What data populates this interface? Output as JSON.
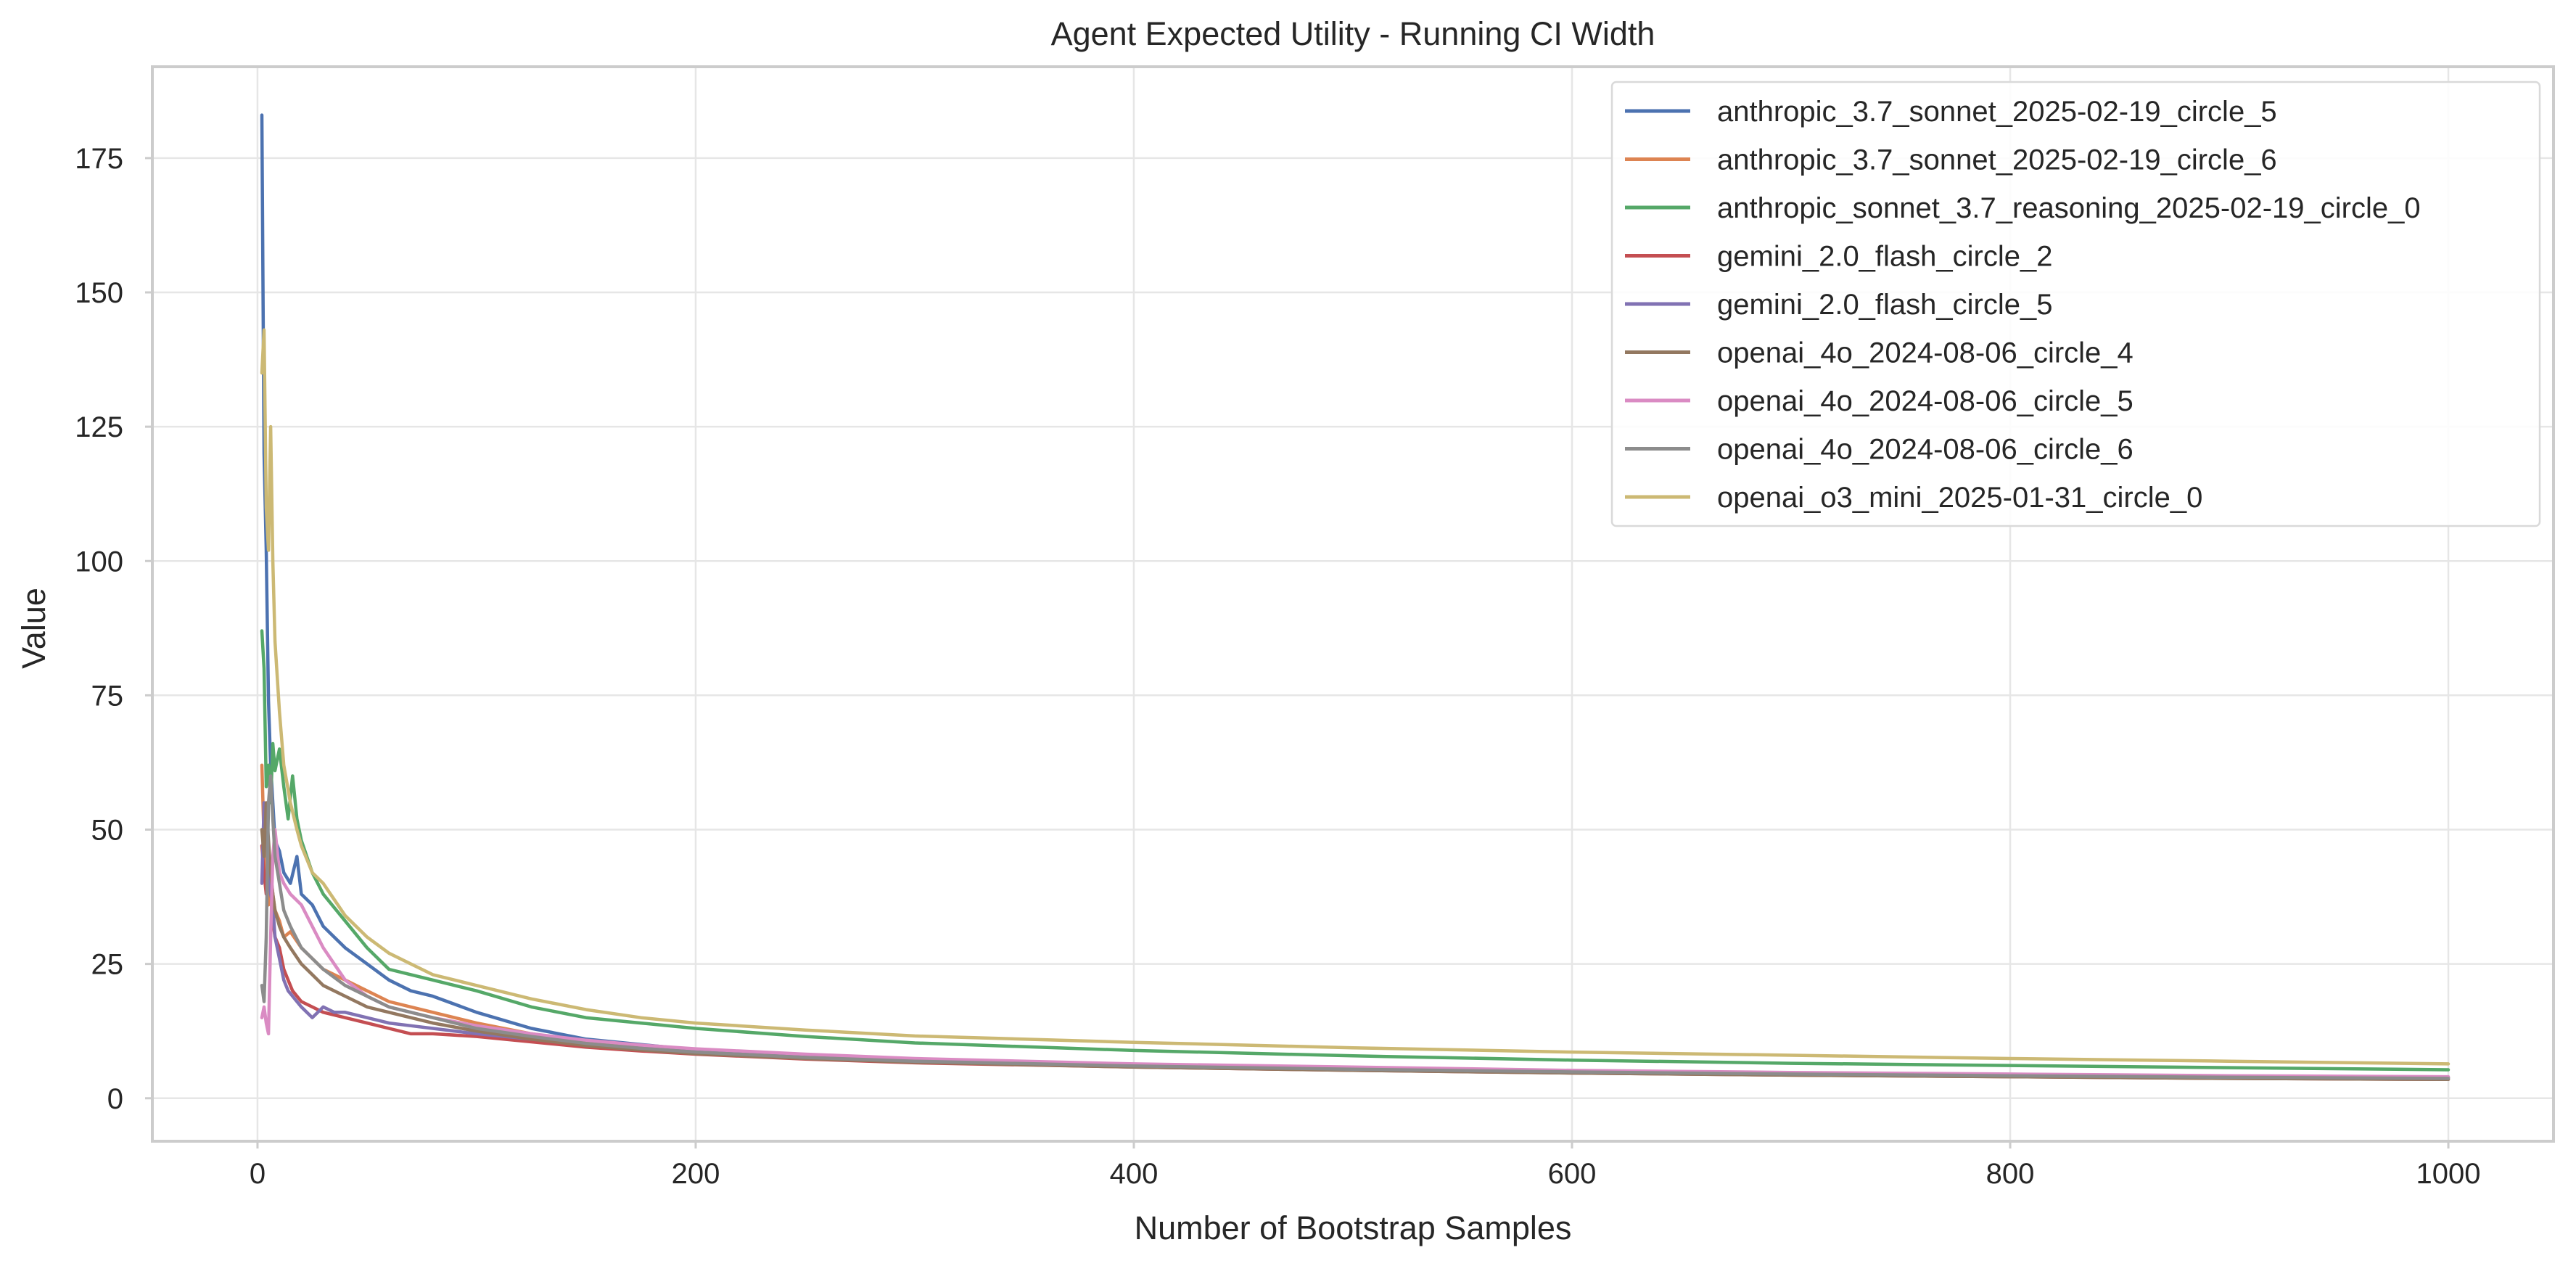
{
  "chart_data": {
    "type": "line",
    "title": "Agent Expected Utility - Running CI Width",
    "xlabel": "Number of Bootstrap Samples",
    "ylabel": "Value",
    "xlim": [
      -48,
      1048
    ],
    "ylim": [
      -8,
      192
    ],
    "xticks": [
      0,
      200,
      400,
      600,
      800,
      1000
    ],
    "yticks": [
      0,
      25,
      50,
      75,
      100,
      125,
      150,
      175
    ],
    "grid": true,
    "legend_position": "top-right",
    "series": [
      {
        "name": "anthropic_3.7_sonnet_2025-02-19_circle_5",
        "color": "#4c72b0",
        "points": [
          [
            2,
            183
          ],
          [
            3,
            120
          ],
          [
            4,
            102
          ],
          [
            5,
            74
          ],
          [
            6,
            62
          ],
          [
            7,
            55
          ],
          [
            8,
            48
          ],
          [
            10,
            46
          ],
          [
            12,
            42
          ],
          [
            15,
            40
          ],
          [
            18,
            45
          ],
          [
            20,
            38
          ],
          [
            25,
            36
          ],
          [
            30,
            32
          ],
          [
            35,
            30
          ],
          [
            40,
            28
          ],
          [
            50,
            25
          ],
          [
            60,
            22
          ],
          [
            70,
            20
          ],
          [
            80,
            19
          ],
          [
            100,
            16
          ],
          [
            125,
            13
          ],
          [
            150,
            11
          ],
          [
            175,
            10
          ],
          [
            200,
            9
          ],
          [
            250,
            8
          ],
          [
            300,
            7.2
          ],
          [
            400,
            6.2
          ],
          [
            500,
            5.6
          ],
          [
            600,
            5.0
          ],
          [
            700,
            4.6
          ],
          [
            800,
            4.3
          ],
          [
            900,
            4.0
          ],
          [
            1000,
            3.8
          ]
        ]
      },
      {
        "name": "anthropic_3.7_sonnet_2025-02-19_circle_6",
        "color": "#dd8452",
        "points": [
          [
            2,
            62
          ],
          [
            3,
            48
          ],
          [
            4,
            40
          ],
          [
            5,
            36
          ],
          [
            6,
            42
          ],
          [
            7,
            38
          ],
          [
            8,
            35
          ],
          [
            10,
            33
          ],
          [
            12,
            30
          ],
          [
            15,
            31
          ],
          [
            20,
            28
          ],
          [
            25,
            26
          ],
          [
            30,
            24
          ],
          [
            40,
            22
          ],
          [
            50,
            20
          ],
          [
            60,
            18
          ],
          [
            70,
            17
          ],
          [
            80,
            16
          ],
          [
            100,
            14
          ],
          [
            125,
            12
          ],
          [
            150,
            10.5
          ],
          [
            175,
            9.5
          ],
          [
            200,
            8.8
          ],
          [
            250,
            7.8
          ],
          [
            300,
            7.0
          ],
          [
            400,
            6.1
          ],
          [
            500,
            5.5
          ],
          [
            600,
            5.0
          ],
          [
            700,
            4.6
          ],
          [
            800,
            4.3
          ],
          [
            900,
            4.0
          ],
          [
            1000,
            3.8
          ]
        ]
      },
      {
        "name": "anthropic_sonnet_3.7_reasoning_2025-02-19_circle_0",
        "color": "#55a868",
        "points": [
          [
            2,
            87
          ],
          [
            3,
            80
          ],
          [
            4,
            58
          ],
          [
            5,
            62
          ],
          [
            6,
            55
          ],
          [
            7,
            66
          ],
          [
            8,
            61
          ],
          [
            10,
            65
          ],
          [
            12,
            58
          ],
          [
            14,
            52
          ],
          [
            16,
            60
          ],
          [
            18,
            52
          ],
          [
            20,
            48
          ],
          [
            25,
            42
          ],
          [
            30,
            38
          ],
          [
            40,
            33
          ],
          [
            50,
            28
          ],
          [
            60,
            24
          ],
          [
            70,
            23
          ],
          [
            80,
            22
          ],
          [
            100,
            20
          ],
          [
            125,
            17
          ],
          [
            150,
            15
          ],
          [
            175,
            14
          ],
          [
            200,
            13
          ],
          [
            250,
            11.5
          ],
          [
            300,
            10.3
          ],
          [
            400,
            8.9
          ],
          [
            500,
            7.9
          ],
          [
            600,
            7.1
          ],
          [
            700,
            6.5
          ],
          [
            800,
            6.1
          ],
          [
            900,
            5.7
          ],
          [
            1000,
            5.3
          ]
        ]
      },
      {
        "name": "gemini_2.0_flash_circle_2",
        "color": "#c44e52",
        "points": [
          [
            2,
            47
          ],
          [
            3,
            42
          ],
          [
            4,
            38
          ],
          [
            5,
            44
          ],
          [
            6,
            40
          ],
          [
            7,
            33
          ],
          [
            8,
            30
          ],
          [
            10,
            28
          ],
          [
            12,
            24
          ],
          [
            14,
            22
          ],
          [
            16,
            20
          ],
          [
            18,
            19
          ],
          [
            20,
            18
          ],
          [
            25,
            17
          ],
          [
            30,
            16
          ],
          [
            40,
            15
          ],
          [
            50,
            14
          ],
          [
            60,
            13
          ],
          [
            70,
            12
          ],
          [
            80,
            12
          ],
          [
            100,
            11.5
          ],
          [
            125,
            10.5
          ],
          [
            150,
            9.5
          ],
          [
            175,
            8.8
          ],
          [
            200,
            8.2
          ],
          [
            250,
            7.3
          ],
          [
            300,
            6.6
          ],
          [
            400,
            5.8
          ],
          [
            500,
            5.2
          ],
          [
            600,
            4.7
          ],
          [
            700,
            4.3
          ],
          [
            800,
            4.0
          ],
          [
            900,
            3.7
          ],
          [
            1000,
            3.5
          ]
        ]
      },
      {
        "name": "gemini_2.0_flash_circle_5",
        "color": "#8172b3",
        "points": [
          [
            2,
            40
          ],
          [
            3,
            55
          ],
          [
            4,
            50
          ],
          [
            5,
            44
          ],
          [
            6,
            38
          ],
          [
            7,
            36
          ],
          [
            8,
            30
          ],
          [
            10,
            26
          ],
          [
            12,
            22
          ],
          [
            14,
            20
          ],
          [
            16,
            19
          ],
          [
            18,
            18
          ],
          [
            20,
            17
          ],
          [
            25,
            15
          ],
          [
            30,
            17
          ],
          [
            35,
            16
          ],
          [
            40,
            16
          ],
          [
            50,
            15
          ],
          [
            60,
            14
          ],
          [
            70,
            13.5
          ],
          [
            80,
            13
          ],
          [
            100,
            12
          ],
          [
            125,
            11
          ],
          [
            150,
            10
          ],
          [
            175,
            9.3
          ],
          [
            200,
            8.7
          ],
          [
            250,
            7.8
          ],
          [
            300,
            7.0
          ],
          [
            400,
            6.1
          ],
          [
            500,
            5.5
          ],
          [
            600,
            5.0
          ],
          [
            700,
            4.6
          ],
          [
            800,
            4.3
          ],
          [
            900,
            4.0
          ],
          [
            1000,
            3.8
          ]
        ]
      },
      {
        "name": "openai_4o_2024-08-06_circle_4",
        "color": "#937860",
        "points": [
          [
            2,
            50
          ],
          [
            3,
            45
          ],
          [
            4,
            55
          ],
          [
            5,
            48
          ],
          [
            6,
            42
          ],
          [
            7,
            38
          ],
          [
            8,
            35
          ],
          [
            10,
            32
          ],
          [
            12,
            30
          ],
          [
            15,
            28
          ],
          [
            20,
            25
          ],
          [
            25,
            23
          ],
          [
            30,
            21
          ],
          [
            40,
            19
          ],
          [
            50,
            17
          ],
          [
            60,
            16
          ],
          [
            70,
            15
          ],
          [
            80,
            14
          ],
          [
            100,
            12.5
          ],
          [
            125,
            11
          ],
          [
            150,
            9.8
          ],
          [
            175,
            9.0
          ],
          [
            200,
            8.3
          ],
          [
            250,
            7.4
          ],
          [
            300,
            6.7
          ],
          [
            400,
            5.8
          ],
          [
            500,
            5.2
          ],
          [
            600,
            4.7
          ],
          [
            700,
            4.3
          ],
          [
            800,
            4.0
          ],
          [
            900,
            3.7
          ],
          [
            1000,
            3.5
          ]
        ]
      },
      {
        "name": "openai_4o_2024-08-06_circle_5",
        "color": "#da8bc3",
        "points": [
          [
            2,
            15
          ],
          [
            3,
            17
          ],
          [
            4,
            14
          ],
          [
            5,
            12
          ],
          [
            6,
            30
          ],
          [
            7,
            45
          ],
          [
            8,
            50
          ],
          [
            10,
            42
          ],
          [
            12,
            40
          ],
          [
            15,
            38
          ],
          [
            20,
            36
          ],
          [
            25,
            32
          ],
          [
            30,
            28
          ],
          [
            40,
            22
          ],
          [
            50,
            19
          ],
          [
            60,
            17
          ],
          [
            70,
            16
          ],
          [
            80,
            15
          ],
          [
            100,
            13.5
          ],
          [
            125,
            12
          ],
          [
            150,
            10.8
          ],
          [
            175,
            9.9
          ],
          [
            200,
            9.2
          ],
          [
            250,
            8.2
          ],
          [
            300,
            7.4
          ],
          [
            400,
            6.4
          ],
          [
            500,
            5.8
          ],
          [
            600,
            5.2
          ],
          [
            700,
            4.8
          ],
          [
            800,
            4.5
          ],
          [
            900,
            4.2
          ],
          [
            1000,
            4.0
          ]
        ]
      },
      {
        "name": "openai_4o_2024-08-06_circle_6",
        "color": "#8c8c8c",
        "points": [
          [
            2,
            21
          ],
          [
            3,
            18
          ],
          [
            4,
            30
          ],
          [
            5,
            55
          ],
          [
            6,
            60
          ],
          [
            7,
            52
          ],
          [
            8,
            45
          ],
          [
            10,
            40
          ],
          [
            12,
            35
          ],
          [
            15,
            32
          ],
          [
            20,
            28
          ],
          [
            25,
            26
          ],
          [
            30,
            24
          ],
          [
            40,
            21
          ],
          [
            50,
            19
          ],
          [
            60,
            17
          ],
          [
            70,
            16
          ],
          [
            80,
            15
          ],
          [
            100,
            13
          ],
          [
            125,
            11.5
          ],
          [
            150,
            10.2
          ],
          [
            175,
            9.3
          ],
          [
            200,
            8.6
          ],
          [
            250,
            7.6
          ],
          [
            300,
            6.9
          ],
          [
            400,
            6.0
          ],
          [
            500,
            5.4
          ],
          [
            600,
            4.9
          ],
          [
            700,
            4.5
          ],
          [
            800,
            4.2
          ],
          [
            900,
            3.9
          ],
          [
            1000,
            3.7
          ]
        ]
      },
      {
        "name": "openai_o3_mini_2025-01-31_circle_0",
        "color": "#ccb974",
        "points": [
          [
            2,
            135
          ],
          [
            3,
            143
          ],
          [
            4,
            110
          ],
          [
            5,
            102
          ],
          [
            6,
            125
          ],
          [
            7,
            100
          ],
          [
            8,
            85
          ],
          [
            10,
            72
          ],
          [
            12,
            62
          ],
          [
            15,
            55
          ],
          [
            18,
            50
          ],
          [
            20,
            47
          ],
          [
            25,
            42
          ],
          [
            30,
            40
          ],
          [
            35,
            37
          ],
          [
            40,
            34
          ],
          [
            50,
            30
          ],
          [
            60,
            27
          ],
          [
            70,
            25
          ],
          [
            80,
            23
          ],
          [
            100,
            21
          ],
          [
            125,
            18.5
          ],
          [
            150,
            16.5
          ],
          [
            175,
            15
          ],
          [
            200,
            14
          ],
          [
            250,
            12.7
          ],
          [
            300,
            11.6
          ],
          [
            400,
            10.4
          ],
          [
            500,
            9.4
          ],
          [
            600,
            8.6
          ],
          [
            700,
            8.0
          ],
          [
            800,
            7.4
          ],
          [
            900,
            6.9
          ],
          [
            1000,
            6.4
          ]
        ]
      }
    ]
  }
}
